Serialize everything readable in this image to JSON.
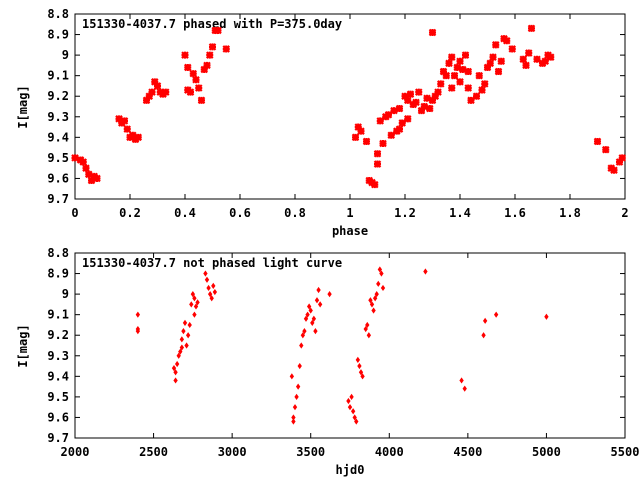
{
  "chart_data": [
    {
      "type": "scatter",
      "title": "151330-4037.7 phased with P=375.0day",
      "xlabel": "phase",
      "ylabel": "I[mag]",
      "xlim": [
        0,
        2
      ],
      "ylim": [
        9.7,
        8.8
      ],
      "y_inverted": true,
      "xticks": [
        "0",
        "0.2",
        "0.4",
        "0.6",
        "0.8",
        "1",
        "1.2",
        "1.4",
        "1.6",
        "1.8",
        "2"
      ],
      "yticks": [
        "8.8",
        "8.9",
        "9",
        "9.1",
        "9.2",
        "9.3",
        "9.4",
        "9.5",
        "9.6",
        "9.7"
      ],
      "color": "#ff0000",
      "marker": "filled-cross",
      "points": [
        [
          0.0,
          9.5
        ],
        [
          0.02,
          9.51
        ],
        [
          0.03,
          9.52
        ],
        [
          0.04,
          9.55
        ],
        [
          0.05,
          9.58
        ],
        [
          0.06,
          9.61
        ],
        [
          0.07,
          9.59
        ],
        [
          0.08,
          9.6
        ],
        [
          0.16,
          9.31
        ],
        [
          0.17,
          9.33
        ],
        [
          0.18,
          9.32
        ],
        [
          0.19,
          9.36
        ],
        [
          0.2,
          9.4
        ],
        [
          0.21,
          9.39
        ],
        [
          0.22,
          9.41
        ],
        [
          0.23,
          9.4
        ],
        [
          0.26,
          9.22
        ],
        [
          0.27,
          9.2
        ],
        [
          0.28,
          9.18
        ],
        [
          0.29,
          9.13
        ],
        [
          0.3,
          9.15
        ],
        [
          0.31,
          9.18
        ],
        [
          0.32,
          9.19
        ],
        [
          0.33,
          9.18
        ],
        [
          0.4,
          9.0
        ],
        [
          0.41,
          9.06
        ],
        [
          0.41,
          9.17
        ],
        [
          0.42,
          9.18
        ],
        [
          0.43,
          9.09
        ],
        [
          0.44,
          9.12
        ],
        [
          0.45,
          9.16
        ],
        [
          0.46,
          9.22
        ],
        [
          0.47,
          9.07
        ],
        [
          0.48,
          9.05
        ],
        [
          0.49,
          9.0
        ],
        [
          0.5,
          8.96
        ],
        [
          0.51,
          8.88
        ],
        [
          0.52,
          8.88
        ],
        [
          0.55,
          8.97
        ],
        [
          1.02,
          9.4
        ],
        [
          1.03,
          9.35
        ],
        [
          1.04,
          9.37
        ],
        [
          1.06,
          9.42
        ],
        [
          1.07,
          9.61
        ],
        [
          1.08,
          9.62
        ],
        [
          1.09,
          9.63
        ],
        [
          1.1,
          9.53
        ],
        [
          1.1,
          9.48
        ],
        [
          1.11,
          9.32
        ],
        [
          1.12,
          9.43
        ],
        [
          1.13,
          9.3
        ],
        [
          1.14,
          9.29
        ],
        [
          1.15,
          9.39
        ],
        [
          1.16,
          9.27
        ],
        [
          1.17,
          9.37
        ],
        [
          1.18,
          9.36
        ],
        [
          1.18,
          9.26
        ],
        [
          1.19,
          9.33
        ],
        [
          1.2,
          9.2
        ],
        [
          1.21,
          9.31
        ],
        [
          1.21,
          9.22
        ],
        [
          1.22,
          9.19
        ],
        [
          1.23,
          9.24
        ],
        [
          1.24,
          9.23
        ],
        [
          1.25,
          9.18
        ],
        [
          1.26,
          9.27
        ],
        [
          1.27,
          9.25
        ],
        [
          1.28,
          9.21
        ],
        [
          1.29,
          9.26
        ],
        [
          1.3,
          8.89
        ],
        [
          1.3,
          9.22
        ],
        [
          1.31,
          9.2
        ],
        [
          1.32,
          9.18
        ],
        [
          1.33,
          9.14
        ],
        [
          1.34,
          9.08
        ],
        [
          1.35,
          9.1
        ],
        [
          1.36,
          9.04
        ],
        [
          1.37,
          9.01
        ],
        [
          1.37,
          9.16
        ],
        [
          1.38,
          9.1
        ],
        [
          1.39,
          9.06
        ],
        [
          1.4,
          9.13
        ],
        [
          1.4,
          9.03
        ],
        [
          1.41,
          9.07
        ],
        [
          1.42,
          9.0
        ],
        [
          1.43,
          9.08
        ],
        [
          1.43,
          9.16
        ],
        [
          1.44,
          9.22
        ],
        [
          1.46,
          9.2
        ],
        [
          1.47,
          9.1
        ],
        [
          1.48,
          9.17
        ],
        [
          1.49,
          9.14
        ],
        [
          1.5,
          9.06
        ],
        [
          1.51,
          9.04
        ],
        [
          1.52,
          9.01
        ],
        [
          1.53,
          8.95
        ],
        [
          1.54,
          9.08
        ],
        [
          1.55,
          9.03
        ],
        [
          1.56,
          8.92
        ],
        [
          1.57,
          8.93
        ],
        [
          1.59,
          8.97
        ],
        [
          1.63,
          9.02
        ],
        [
          1.64,
          9.05
        ],
        [
          1.65,
          8.99
        ],
        [
          1.66,
          8.87
        ],
        [
          1.68,
          9.02
        ],
        [
          1.7,
          9.04
        ],
        [
          1.71,
          9.03
        ],
        [
          1.72,
          9.0
        ],
        [
          1.73,
          9.01
        ],
        [
          1.9,
          9.42
        ],
        [
          1.93,
          9.46
        ],
        [
          1.95,
          9.55
        ],
        [
          1.96,
          9.56
        ],
        [
          1.98,
          9.52
        ],
        [
          1.99,
          9.5
        ]
      ]
    },
    {
      "type": "scatter",
      "title": "151330-4037.7 not phased light curve",
      "xlabel": "hjd0",
      "ylabel": "I[mag]",
      "xlim": [
        2000,
        5500
      ],
      "ylim": [
        9.7,
        8.8
      ],
      "y_inverted": true,
      "xticks": [
        "2000",
        "2500",
        "3000",
        "3500",
        "4000",
        "4500",
        "5000",
        "5500"
      ],
      "yticks": [
        "8.8",
        "8.9",
        "9",
        "9.1",
        "9.2",
        "9.3",
        "9.4",
        "9.5",
        "9.6",
        "9.7"
      ],
      "color": "#ff0000",
      "marker": "small-diamond",
      "points": [
        [
          2400,
          9.1
        ],
        [
          2400,
          9.17
        ],
        [
          2400,
          9.18
        ],
        [
          2630,
          9.36
        ],
        [
          2640,
          9.38
        ],
        [
          2640,
          9.42
        ],
        [
          2650,
          9.34
        ],
        [
          2660,
          9.3
        ],
        [
          2670,
          9.28
        ],
        [
          2680,
          9.26
        ],
        [
          2680,
          9.22
        ],
        [
          2690,
          9.18
        ],
        [
          2700,
          9.14
        ],
        [
          2710,
          9.25
        ],
        [
          2720,
          9.2
        ],
        [
          2730,
          9.15
        ],
        [
          2740,
          9.05
        ],
        [
          2750,
          9.0
        ],
        [
          2760,
          9.02
        ],
        [
          2760,
          9.1
        ],
        [
          2770,
          9.06
        ],
        [
          2780,
          9.04
        ],
        [
          2830,
          8.9
        ],
        [
          2840,
          8.93
        ],
        [
          2850,
          8.97
        ],
        [
          2860,
          9.0
        ],
        [
          2870,
          9.02
        ],
        [
          2880,
          8.96
        ],
        [
          2890,
          8.99
        ],
        [
          3380,
          9.4
        ],
        [
          3390,
          9.6
        ],
        [
          3390,
          9.62
        ],
        [
          3400,
          9.55
        ],
        [
          3410,
          9.5
        ],
        [
          3420,
          9.45
        ],
        [
          3430,
          9.35
        ],
        [
          3440,
          9.25
        ],
        [
          3450,
          9.2
        ],
        [
          3460,
          9.18
        ],
        [
          3470,
          9.12
        ],
        [
          3480,
          9.1
        ],
        [
          3490,
          9.06
        ],
        [
          3500,
          9.08
        ],
        [
          3510,
          9.14
        ],
        [
          3520,
          9.12
        ],
        [
          3530,
          9.18
        ],
        [
          3540,
          9.03
        ],
        [
          3550,
          8.98
        ],
        [
          3560,
          9.05
        ],
        [
          3620,
          9.0
        ],
        [
          3740,
          9.52
        ],
        [
          3750,
          9.55
        ],
        [
          3760,
          9.5
        ],
        [
          3770,
          9.57
        ],
        [
          3780,
          9.6
        ],
        [
          3790,
          9.62
        ],
        [
          3800,
          9.32
        ],
        [
          3810,
          9.35
        ],
        [
          3820,
          9.38
        ],
        [
          3830,
          9.4
        ],
        [
          3850,
          9.17
        ],
        [
          3860,
          9.15
        ],
        [
          3870,
          9.2
        ],
        [
          3880,
          9.03
        ],
        [
          3890,
          9.05
        ],
        [
          3900,
          9.08
        ],
        [
          3910,
          9.02
        ],
        [
          3920,
          9.0
        ],
        [
          3930,
          8.95
        ],
        [
          3940,
          8.88
        ],
        [
          3950,
          8.9
        ],
        [
          3960,
          8.97
        ],
        [
          4230,
          8.89
        ],
        [
          4460,
          9.42
        ],
        [
          4480,
          9.46
        ],
        [
          4600,
          9.2
        ],
        [
          4610,
          9.13
        ],
        [
          4680,
          9.1
        ],
        [
          5000,
          9.11
        ]
      ]
    }
  ]
}
